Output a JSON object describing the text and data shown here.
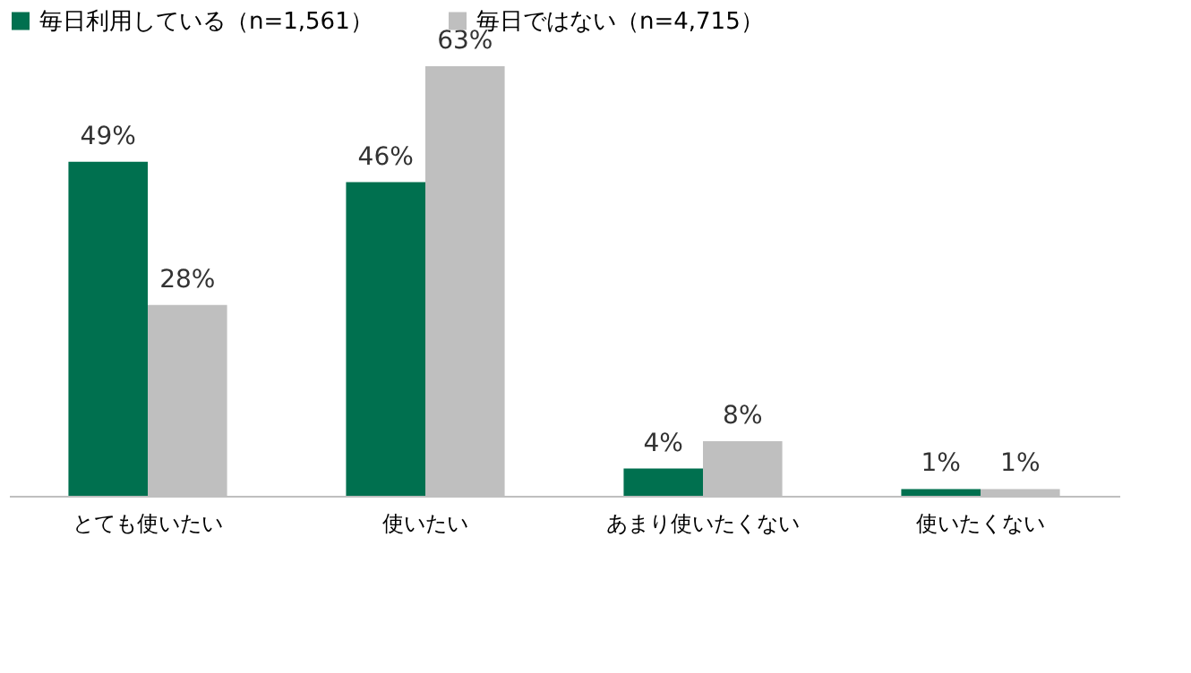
{
  "chart_data": {
    "type": "bar",
    "categories": [
      "とても使いたい",
      "使いたい",
      "あまり使いたくない",
      "使いたくない"
    ],
    "series": [
      {
        "name": "毎日利用している（n=1,561）",
        "color": "#00704f",
        "values": [
          49,
          46,
          4,
          1
        ],
        "value_labels": [
          "49%",
          "46%",
          "4%",
          "1%"
        ]
      },
      {
        "name": "毎日ではない（n=4,715）",
        "color": "#bfbfbf",
        "values": [
          28,
          63,
          8,
          1
        ],
        "value_labels": [
          "28%",
          "63%",
          "8%",
          "1%"
        ]
      }
    ],
    "legend": "top",
    "grid": false
  }
}
